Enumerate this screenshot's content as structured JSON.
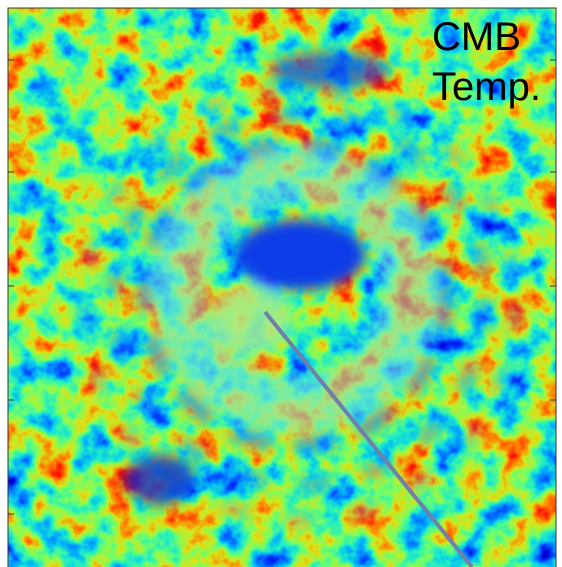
{
  "label": {
    "lines": [
      "CMB",
      "Temp."
    ]
  }
}
